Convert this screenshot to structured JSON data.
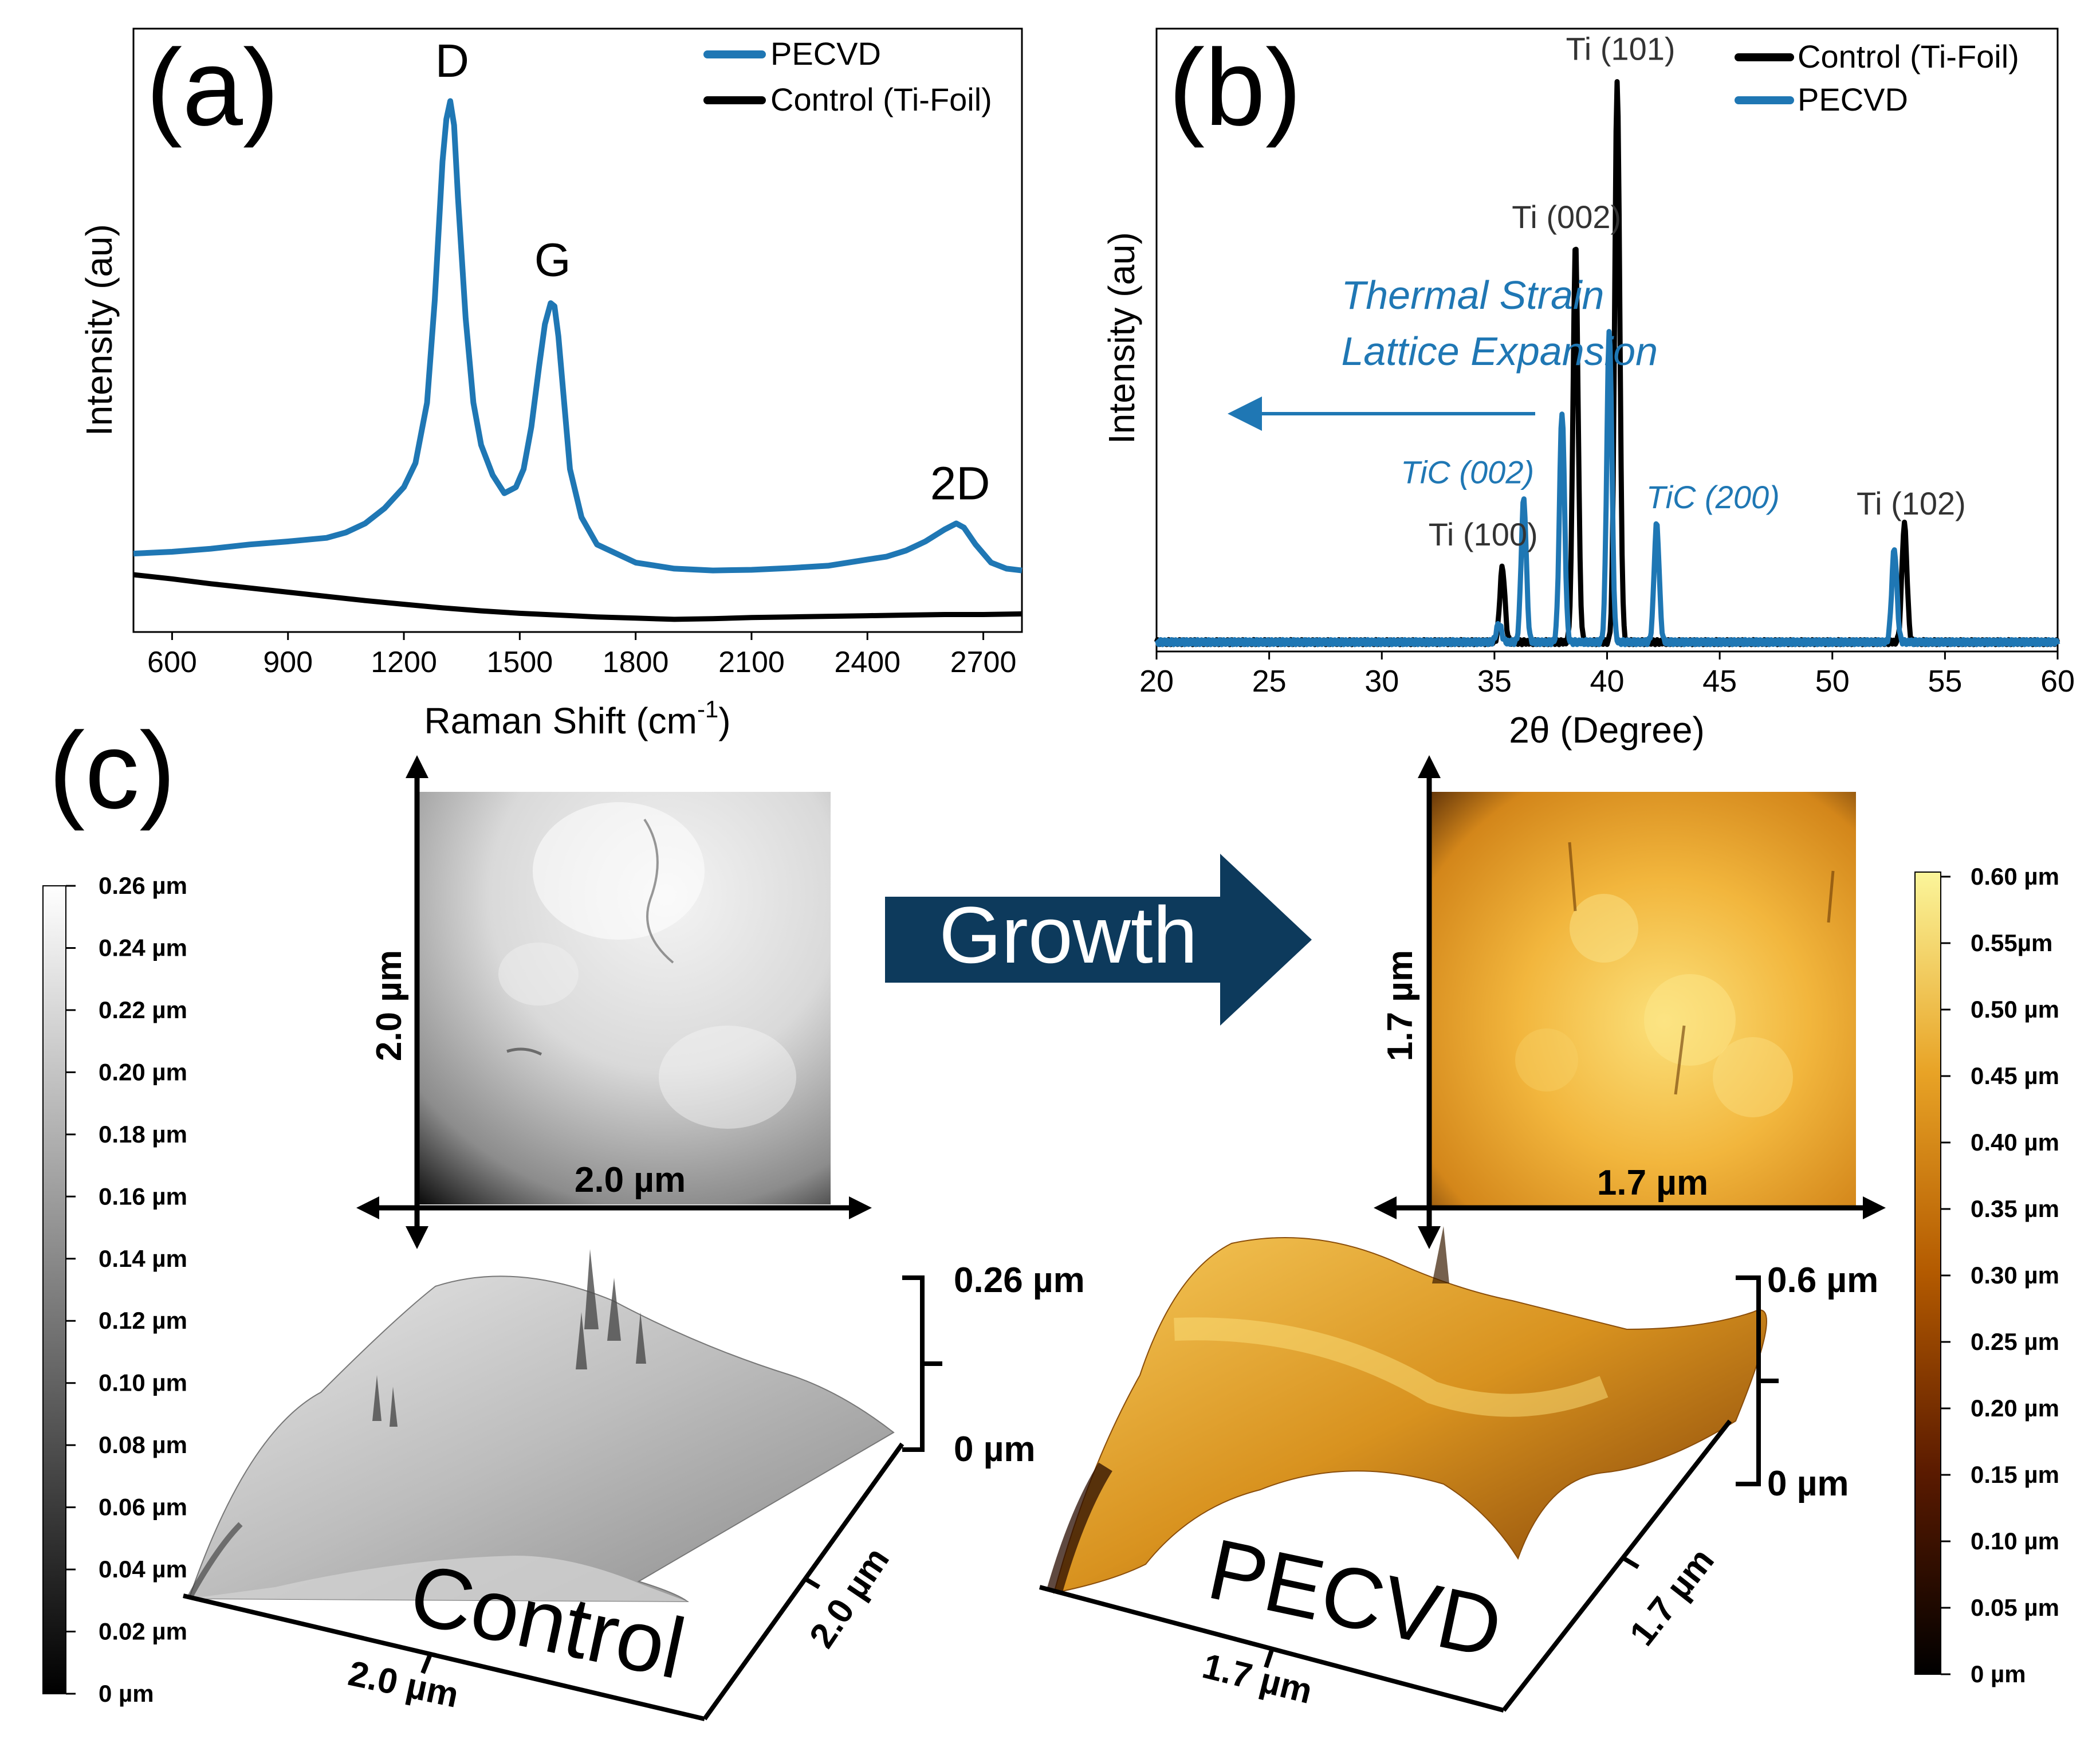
{
  "chart_data": [
    {
      "panel": "(a)",
      "type": "line",
      "xlabel": "Raman Shift (cm",
      "xlabel_sup": "-1",
      "xlabel_end": ")",
      "ylabel": "Intensity (au)",
      "xlim": [
        500,
        2800
      ],
      "ylim": [
        0,
        100
      ],
      "x_ticks": [
        "600",
        "900",
        "1200",
        "1500",
        "1800",
        "2100",
        "2400",
        "2700"
      ],
      "x_tick_values": [
        600,
        900,
        1200,
        1500,
        1800,
        2100,
        2400,
        2700
      ],
      "legend": {
        "placement": "top-right",
        "entries": [
          "PECVD",
          "Control (Ti-Foil)"
        ]
      },
      "series": [
        {
          "name": "PECVD",
          "color": "#1f77b4",
          "x": [
            500,
            600,
            700,
            800,
            900,
            1000,
            1050,
            1100,
            1150,
            1200,
            1230,
            1260,
            1280,
            1300,
            1310,
            1320,
            1330,
            1340,
            1360,
            1380,
            1400,
            1430,
            1460,
            1490,
            1510,
            1530,
            1550,
            1565,
            1580,
            1590,
            1600,
            1615,
            1630,
            1660,
            1700,
            1800,
            1900,
            2000,
            2100,
            2200,
            2300,
            2400,
            2450,
            2500,
            2550,
            2600,
            2630,
            2650,
            2680,
            2720,
            2760,
            2800
          ],
          "y": [
            13,
            13.3,
            13.8,
            14.5,
            15,
            15.6,
            16.5,
            18,
            20.5,
            24,
            28,
            38,
            55,
            78,
            85,
            88,
            84,
            72,
            52,
            38,
            31,
            26,
            23,
            24,
            27,
            34,
            44,
            51,
            54.5,
            54,
            49,
            38,
            27,
            19,
            14.5,
            11.5,
            10.5,
            10.2,
            10.3,
            10.6,
            11,
            12,
            12.5,
            13.5,
            15,
            17,
            18,
            17.3,
            14.5,
            11.5,
            10.5,
            10.2
          ]
        },
        {
          "name": "Control (Ti-Foil)",
          "color": "#000000",
          "x": [
            500,
            600,
            700,
            800,
            900,
            1000,
            1100,
            1200,
            1300,
            1400,
            1500,
            1600,
            1700,
            1800,
            1900,
            2000,
            2100,
            2200,
            2300,
            2400,
            2500,
            2600,
            2700,
            2800
          ],
          "y": [
            9.5,
            8.8,
            8,
            7.3,
            6.6,
            5.9,
            5.2,
            4.6,
            4.0,
            3.5,
            3.1,
            2.8,
            2.5,
            2.3,
            2.1,
            2.2,
            2.4,
            2.5,
            2.6,
            2.7,
            2.8,
            2.9,
            2.9,
            3.0
          ]
        }
      ],
      "annotations": [
        {
          "text": "D",
          "x": 1325,
          "y": 92
        },
        {
          "text": "G",
          "x": 1585,
          "y": 59
        },
        {
          "text": "2D",
          "x": 2640,
          "y": 22
        }
      ]
    },
    {
      "panel": "(b)",
      "type": "line",
      "xlabel": "2θ (Degree)",
      "ylabel": "Intensity (au)",
      "xlim": [
        20,
        60
      ],
      "ylim": [
        0,
        100
      ],
      "x_ticks": [
        "20",
        "25",
        "30",
        "35",
        "40",
        "45",
        "50",
        "55",
        "60"
      ],
      "x_tick_values": [
        20,
        25,
        30,
        35,
        40,
        45,
        50,
        55,
        60
      ],
      "legend": {
        "placement": "top-right",
        "entries": [
          "Control (Ti-Foil)",
          "PECVD"
        ]
      },
      "series": [
        {
          "name": "Control (Ti-Foil)",
          "color": "#000000",
          "peaks": [
            {
              "x": 35.35,
              "h": 12
            },
            {
              "x": 38.6,
              "h": 64
            },
            {
              "x": 40.45,
              "h": 90
            },
            {
              "x": 53.2,
              "h": 19
            }
          ],
          "baseline": 1.5
        },
        {
          "name": "PECVD",
          "color": "#1f77b4",
          "peaks": [
            {
              "x": 35.2,
              "h": 3
            },
            {
              "x": 36.3,
              "h": 23
            },
            {
              "x": 38.0,
              "h": 37
            },
            {
              "x": 40.1,
              "h": 50
            },
            {
              "x": 42.2,
              "h": 19
            },
            {
              "x": 52.75,
              "h": 15
            }
          ],
          "baseline": 1.5
        }
      ],
      "annotations": [
        {
          "text": "Ti (101)",
          "x": 40.6,
          "y": 95,
          "color": "#333333",
          "italic": false
        },
        {
          "text": "Ti (002)",
          "x": 38.2,
          "y": 68,
          "color": "#333333",
          "italic": false
        },
        {
          "text": "Ti (100)",
          "x": 34.5,
          "y": 17,
          "color": "#333333",
          "italic": false
        },
        {
          "text": "Ti (102)",
          "x": 53.5,
          "y": 22,
          "color": "#333333",
          "italic": false
        },
        {
          "text": "TiC (002)",
          "x": 33.8,
          "y": 27,
          "color": "#1f77b4",
          "italic": true
        },
        {
          "text": "TiC (200)",
          "x": 44.7,
          "y": 23,
          "color": "#1f77b4",
          "italic": true
        },
        {
          "text": "Thermal Strain",
          "x": 28.2,
          "y": 55,
          "color": "#1f77b4",
          "italic": true
        },
        {
          "text": "Lattice Expansion",
          "x": 28.2,
          "y": 46,
          "color": "#1f77b4",
          "italic": true
        }
      ]
    }
  ],
  "panel_c": {
    "label": "(c)",
    "growth_label": "Growth",
    "control": {
      "name": "Control",
      "scan_x": "2.0 µm",
      "scan_y": "2.0 µm",
      "axis_3d_x": "2.0 µm",
      "axis_3d_y": "2.0 µm",
      "z_top": "0.26 µm",
      "z_bottom": "0 µm",
      "colorbar_ticks": [
        "0.26 µm",
        "0.24 µm",
        "0.22 µm",
        "0.20 µm",
        "0.18 µm",
        "0.16 µm",
        "0.14 µm",
        "0.12 µm",
        "0.10 µm",
        "0.08 µm",
        "0.06 µm",
        "0.04 µm",
        "0.02 µm",
        "0 µm"
      ]
    },
    "pecvd": {
      "name": "PECVD",
      "scan_x": "1.7 µm",
      "scan_y": "1.7 µm",
      "axis_3d_x": "1.7 µm",
      "axis_3d_y": "1.7 µm",
      "z_top": "0.6 µm",
      "z_bottom": "0 µm",
      "colorbar_ticks": [
        "0.60 µm",
        "0.55µm",
        "0.50 µm",
        "0.45 µm",
        "0.40 µm",
        "0.35 µm",
        "0.30 µm",
        "0.25 µm",
        "0.20 µm",
        "0.15 µm",
        "0.10 µm",
        "0.05 µm",
        "0 µm"
      ]
    }
  }
}
